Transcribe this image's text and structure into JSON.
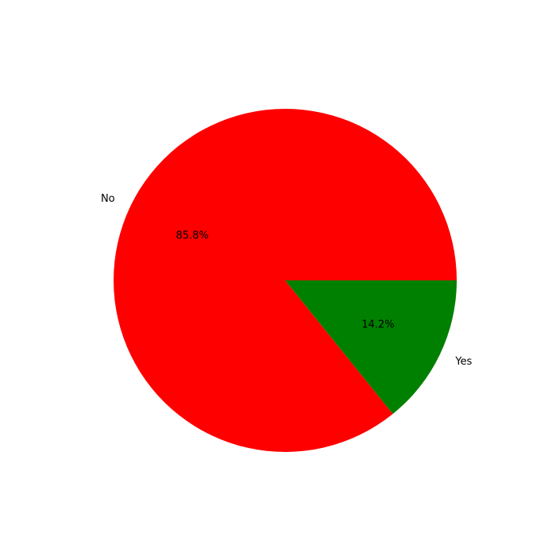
{
  "chart_data": {
    "type": "pie",
    "title": "",
    "slices": [
      {
        "label": "No",
        "value": 85.8,
        "pct_label": "85.8%",
        "color": "#ff0000"
      },
      {
        "label": "Yes",
        "value": 14.2,
        "pct_label": "14.2%",
        "color": "#008000"
      }
    ],
    "start_angle_deg": 0,
    "direction": "counterclockwise",
    "legend": "none"
  }
}
